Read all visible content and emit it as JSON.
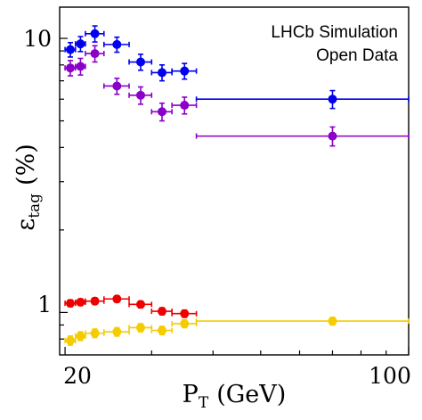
{
  "chart_data": {
    "type": "scatter",
    "title": "",
    "xlabel": "P_T (GeV)",
    "xlabel_main": "P",
    "xlabel_sub": "T",
    "xlabel_unit": "(GeV)",
    "ylabel": "ε_tag (%)",
    "ylabel_main": "ε",
    "ylabel_sub": "tag",
    "ylabel_unit": "(%)",
    "x_scale": "log",
    "y_scale": "log",
    "xlim": [
      19.5,
      100
    ],
    "ylim": [
      0.7,
      13
    ],
    "x_ticks": [
      20,
      100
    ],
    "x_tick_labels": [
      "20",
      "100"
    ],
    "y_ticks": [
      1,
      10
    ],
    "y_tick_labels": [
      "1",
      "10"
    ],
    "grid": false,
    "legend": "none",
    "annotations": [
      "LHCb Simulation",
      "Open Data"
    ],
    "series": [
      {
        "color": "#0000ee",
        "points": [
          {
            "x": 20.5,
            "xlo": 20.0,
            "xhi": 21.0,
            "y": 9.1,
            "yerr": 0.55
          },
          {
            "x": 21.5,
            "xlo": 21.0,
            "xhi": 22.0,
            "y": 9.55,
            "yerr": 0.6
          },
          {
            "x": 23.0,
            "xlo": 22.0,
            "xhi": 24.0,
            "y": 10.4,
            "yerr": 0.7
          },
          {
            "x": 25.5,
            "xlo": 24.0,
            "xhi": 27.0,
            "y": 9.5,
            "yerr": 0.6
          },
          {
            "x": 28.5,
            "xlo": 27.0,
            "xhi": 30.0,
            "y": 8.2,
            "yerr": 0.55
          },
          {
            "x": 31.5,
            "xlo": 30.0,
            "xhi": 33.0,
            "y": 7.5,
            "yerr": 0.5
          },
          {
            "x": 35.0,
            "xlo": 33.0,
            "xhi": 37.0,
            "y": 7.6,
            "yerr": 0.5
          },
          {
            "x": 70.0,
            "xlo": 37.0,
            "xhi": 100.0,
            "y": 6.0,
            "yerr": 0.45
          }
        ]
      },
      {
        "color": "#8a00c8",
        "points": [
          {
            "x": 20.5,
            "xlo": 20.0,
            "xhi": 21.0,
            "y": 7.8,
            "yerr": 0.5
          },
          {
            "x": 21.5,
            "xlo": 21.0,
            "xhi": 22.0,
            "y": 7.9,
            "yerr": 0.55
          },
          {
            "x": 23.0,
            "xlo": 22.0,
            "xhi": 24.0,
            "y": 8.8,
            "yerr": 0.6
          },
          {
            "x": 25.5,
            "xlo": 24.0,
            "xhi": 27.0,
            "y": 6.7,
            "yerr": 0.45
          },
          {
            "x": 28.5,
            "xlo": 27.0,
            "xhi": 30.0,
            "y": 6.2,
            "yerr": 0.45
          },
          {
            "x": 31.5,
            "xlo": 30.0,
            "xhi": 33.0,
            "y": 5.4,
            "yerr": 0.4
          },
          {
            "x": 35.0,
            "xlo": 33.0,
            "xhi": 37.0,
            "y": 5.7,
            "yerr": 0.4
          },
          {
            "x": 70.0,
            "xlo": 37.0,
            "xhi": 100.0,
            "y": 4.4,
            "yerr": 0.35
          }
        ]
      },
      {
        "color": "#ee0000",
        "points": [
          {
            "x": 20.5,
            "xlo": 20.0,
            "xhi": 21.0,
            "y": 1.08,
            "yerr": 0.03
          },
          {
            "x": 21.5,
            "xlo": 21.0,
            "xhi": 22.0,
            "y": 1.09,
            "yerr": 0.03
          },
          {
            "x": 23.0,
            "xlo": 22.0,
            "xhi": 24.0,
            "y": 1.1,
            "yerr": 0.03
          },
          {
            "x": 25.5,
            "xlo": 24.0,
            "xhi": 27.0,
            "y": 1.12,
            "yerr": 0.03
          },
          {
            "x": 28.5,
            "xlo": 27.0,
            "xhi": 30.0,
            "y": 1.07,
            "yerr": 0.03
          },
          {
            "x": 31.5,
            "xlo": 30.0,
            "xhi": 33.0,
            "y": 1.01,
            "yerr": 0.03
          },
          {
            "x": 35.0,
            "xlo": 33.0,
            "xhi": 37.0,
            "y": 0.99,
            "yerr": 0.03
          }
        ]
      },
      {
        "color": "#f5cc00",
        "points": [
          {
            "x": 20.5,
            "xlo": 20.0,
            "xhi": 21.0,
            "y": 0.79,
            "yerr": 0.03
          },
          {
            "x": 21.5,
            "xlo": 21.0,
            "xhi": 22.0,
            "y": 0.82,
            "yerr": 0.03
          },
          {
            "x": 23.0,
            "xlo": 22.0,
            "xhi": 24.0,
            "y": 0.84,
            "yerr": 0.03
          },
          {
            "x": 25.5,
            "xlo": 24.0,
            "xhi": 27.0,
            "y": 0.85,
            "yerr": 0.03
          },
          {
            "x": 28.5,
            "xlo": 27.0,
            "xhi": 30.0,
            "y": 0.88,
            "yerr": 0.03
          },
          {
            "x": 31.5,
            "xlo": 30.0,
            "xhi": 33.0,
            "y": 0.86,
            "yerr": 0.03
          },
          {
            "x": 35.0,
            "xlo": 33.0,
            "xhi": 37.0,
            "y": 0.91,
            "yerr": 0.03
          },
          {
            "x": 70.0,
            "xlo": 37.0,
            "xhi": 100.0,
            "y": 0.93,
            "yerr": 0.03
          }
        ]
      }
    ]
  }
}
